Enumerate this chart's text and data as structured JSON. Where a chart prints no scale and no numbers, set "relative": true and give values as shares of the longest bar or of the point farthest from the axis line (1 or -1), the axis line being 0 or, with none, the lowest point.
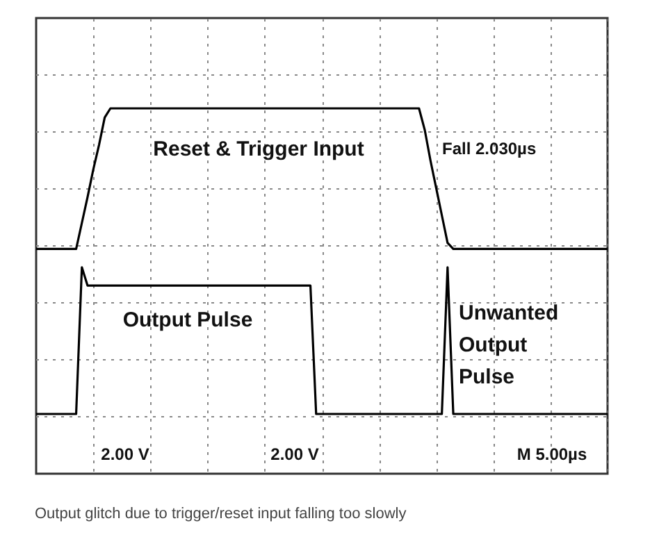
{
  "chart_data": {
    "type": "line",
    "relative": true,
    "grid": true,
    "categories": [
      null,
      null,
      null,
      null,
      null,
      null,
      null,
      null,
      null,
      null,
      null,
      null,
      null,
      null,
      null,
      null,
      null,
      null,
      null,
      null,
      null,
      null,
      null,
      null,
      null,
      null,
      null,
      null,
      null,
      null,
      null,
      null,
      null,
      null,
      null,
      null,
      null,
      null,
      null,
      null,
      null,
      null,
      null,
      null,
      null,
      null,
      null,
      null,
      null,
      null,
      null,
      null,
      null,
      null,
      null,
      null,
      null,
      null,
      null,
      null,
      null,
      null,
      null,
      null,
      null,
      null,
      null,
      null,
      null,
      null,
      null,
      null,
      null,
      null,
      null,
      null,
      null,
      null,
      null,
      null,
      null,
      null,
      null,
      null,
      null,
      null,
      null,
      null,
      null,
      null,
      null,
      null,
      null,
      null,
      null,
      null,
      null,
      null,
      null,
      null,
      null
    ],
    "series": [
      {
        "color": "#000000",
        "values": [
          0.54,
          0.54,
          0.54,
          0.54,
          0.54,
          0.54,
          0.54,
          0.54,
          0.625,
          0.71,
          0.8,
          0.88,
          0.97,
          1.0,
          1.0,
          1.0,
          1.0,
          1.0,
          1.0,
          1.0,
          1.0,
          1.0,
          1.0,
          1.0,
          1.0,
          1.0,
          1.0,
          1.0,
          1.0,
          1.0,
          1.0,
          1.0,
          1.0,
          1.0,
          1.0,
          1.0,
          1.0,
          1.0,
          1.0,
          1.0,
          1.0,
          1.0,
          1.0,
          1.0,
          1.0,
          1.0,
          1.0,
          1.0,
          1.0,
          1.0,
          1.0,
          1.0,
          1.0,
          1.0,
          1.0,
          1.0,
          1.0,
          1.0,
          1.0,
          1.0,
          1.0,
          1.0,
          1.0,
          1.0,
          1.0,
          1.0,
          1.0,
          1.0,
          0.93,
          0.83,
          0.74,
          0.65,
          0.56,
          0.54,
          0.54,
          0.54,
          0.54,
          0.54,
          0.54,
          0.54,
          0.54,
          0.54,
          0.54,
          0.54,
          0.54,
          0.54,
          0.54,
          0.54,
          0.54,
          0.54,
          0.54,
          0.54,
          0.54,
          0.54,
          0.54,
          0.54,
          0.54,
          0.54,
          0.54,
          0.54,
          0.54
        ]
      },
      {
        "color": "#000000",
        "values": [
          0,
          0,
          0,
          0,
          0,
          0,
          0,
          0,
          0.48,
          0.42,
          0.42,
          0.42,
          0.42,
          0.42,
          0.42,
          0.42,
          0.42,
          0.42,
          0.42,
          0.42,
          0.42,
          0.42,
          0.42,
          0.42,
          0.42,
          0.42,
          0.42,
          0.42,
          0.42,
          0.42,
          0.42,
          0.42,
          0.42,
          0.42,
          0.42,
          0.42,
          0.42,
          0.42,
          0.42,
          0.42,
          0.42,
          0.42,
          0.42,
          0.42,
          0.42,
          0.42,
          0.42,
          0.42,
          0.42,
          0,
          0,
          0,
          0,
          0,
          0,
          0,
          0,
          0,
          0,
          0,
          0,
          0,
          0,
          0,
          0,
          0,
          0,
          0,
          0,
          0,
          0,
          0,
          0.48,
          0,
          0,
          0,
          0,
          0,
          0,
          0,
          0,
          0,
          0,
          0,
          0,
          0,
          0,
          0,
          0,
          0,
          0,
          0,
          0,
          0,
          0,
          0,
          0,
          0,
          0,
          0,
          0
        ]
      }
    ],
    "annotations": [
      "Reset & Trigger Input",
      "Fall 2.030µs",
      "Output Pulse",
      "Unwanted\nOutput\nPulse",
      "2.00 V",
      "2.00 V",
      "M 5.00µs",
      "Output glitch due to trigger/reset input falling too slowly"
    ]
  }
}
